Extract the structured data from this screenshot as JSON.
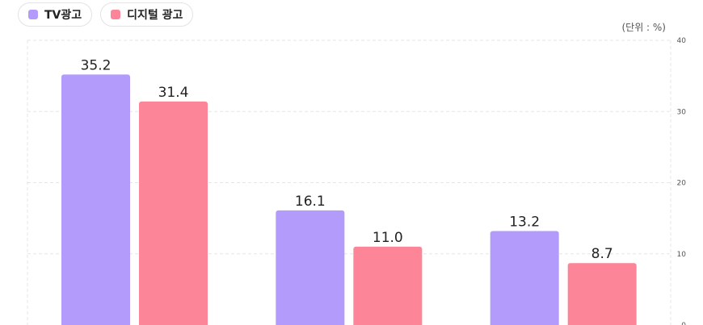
{
  "legend": [
    {
      "label": "TV광고",
      "color": "#b39bfc"
    },
    {
      "label": "디지털 광고",
      "color": "#fc8597"
    }
  ],
  "unit_label": "(단위 : %)",
  "chart_data": {
    "type": "bar",
    "categories": [
      "",
      "",
      ""
    ],
    "series": [
      {
        "name": "TV광고",
        "color": "#b39bfc",
        "values": [
          35.2,
          16.1,
          13.2
        ],
        "labels": [
          "35.2",
          "16.1",
          "13.2"
        ]
      },
      {
        "name": "디지털 광고",
        "color": "#fc8597",
        "values": [
          31.4,
          11.0,
          8.7
        ],
        "labels": [
          "31.4",
          "11.0",
          "8.7"
        ]
      }
    ],
    "ylim": [
      0,
      40
    ],
    "yticks": [
      0,
      10,
      20,
      30,
      40
    ],
    "ytick_labels": [
      "0",
      "10",
      "20",
      "30",
      "40"
    ],
    "y_axis_position": "right",
    "grid": true,
    "legend_position": "top-left"
  }
}
